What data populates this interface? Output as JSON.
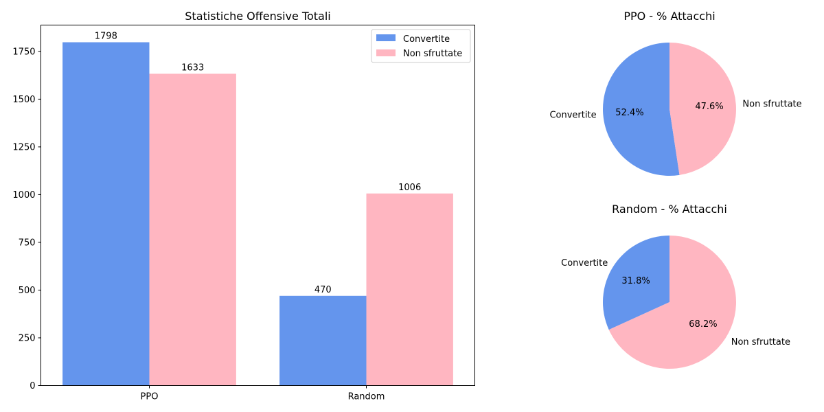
{
  "chart_data": [
    {
      "type": "bar",
      "title": "Statistiche Offensive Totali",
      "categories": [
        "PPO",
        "Random"
      ],
      "series": [
        {
          "name": "Convertite",
          "values": [
            1798,
            470
          ],
          "color": "#6495ED"
        },
        {
          "name": "Non sfruttate",
          "values": [
            1633,
            1006
          ],
          "color": "#FFB6C1"
        }
      ],
      "yticks": [
        0,
        250,
        500,
        750,
        1000,
        1250,
        1500,
        1750
      ],
      "ylim": [
        0,
        1888
      ],
      "legend": "top-right",
      "grid": false
    },
    {
      "type": "pie",
      "title": "PPO - % Attacchi",
      "labels": [
        "Convertite",
        "Non sfruttate"
      ],
      "values": [
        52.4,
        47.6
      ],
      "pct_labels": [
        "52.4%",
        "47.6%"
      ],
      "colors": [
        "#6495ED",
        "#FFB6C1"
      ]
    },
    {
      "type": "pie",
      "title": "Random - % Attacchi",
      "labels": [
        "Convertite",
        "Non sfruttate"
      ],
      "values": [
        31.8,
        68.2
      ],
      "pct_labels": [
        "31.8%",
        "68.2%"
      ],
      "colors": [
        "#6495ED",
        "#FFB6C1"
      ]
    }
  ]
}
